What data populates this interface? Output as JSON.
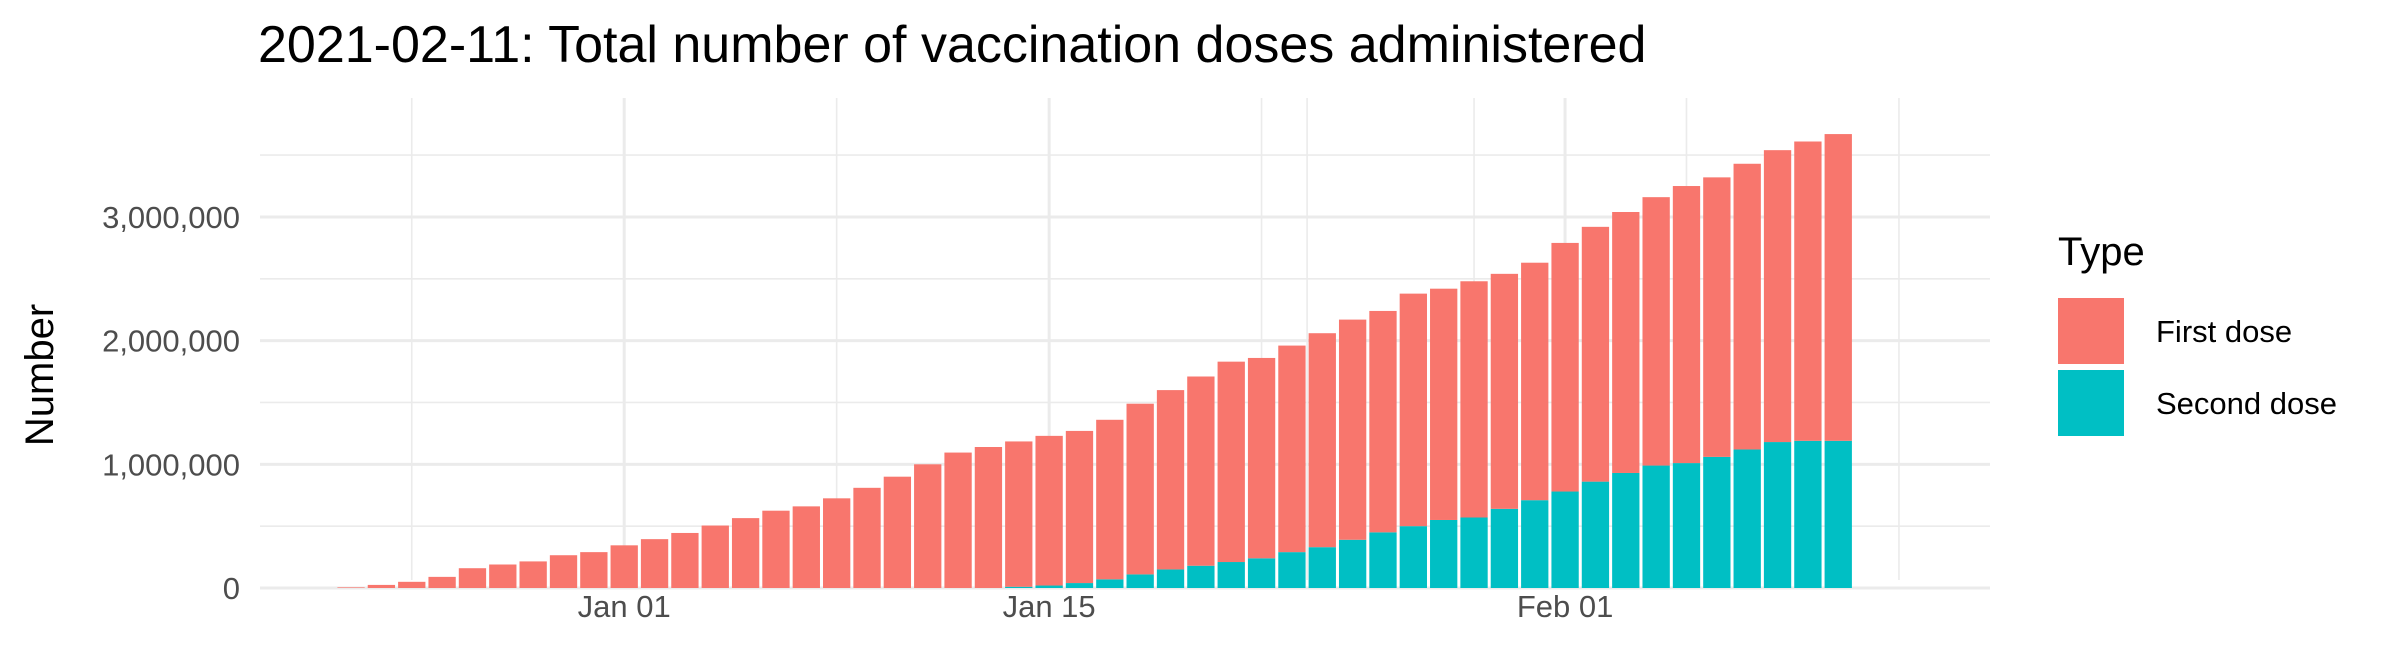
{
  "chart_data": {
    "type": "bar",
    "stacked": true,
    "title": "2021-02-11: Total number of vaccination doses administered",
    "ylabel": "Number",
    "xlabel": "",
    "ylim": [
      0,
      3800000
    ],
    "xlim": [
      "2020-12-20",
      "2021-02-15"
    ],
    "yticks": [
      0,
      1000000,
      2000000,
      3000000
    ],
    "ytick_labels": [
      "0",
      "1,000,000",
      "2,000,000",
      "3,000,000"
    ],
    "xticks": [
      "2021-01-01",
      "2021-01-15",
      "2021-02-01"
    ],
    "xtick_labels": [
      "Jan 01",
      "Jan 15",
      "Feb 01"
    ],
    "grid": true,
    "legend": {
      "title": "Type",
      "position": "right"
    },
    "dates": [
      "2020-12-22",
      "2020-12-23",
      "2020-12-24",
      "2020-12-25",
      "2020-12-26",
      "2020-12-27",
      "2020-12-28",
      "2020-12-29",
      "2020-12-30",
      "2020-12-31",
      "2021-01-01",
      "2021-01-02",
      "2021-01-03",
      "2021-01-04",
      "2021-01-05",
      "2021-01-06",
      "2021-01-07",
      "2021-01-08",
      "2021-01-09",
      "2021-01-10",
      "2021-01-11",
      "2021-01-12",
      "2021-01-13",
      "2021-01-14",
      "2021-01-15",
      "2021-01-16",
      "2021-01-17",
      "2021-01-18",
      "2021-01-19",
      "2021-01-20",
      "2021-01-21",
      "2021-01-22",
      "2021-01-23",
      "2021-01-24",
      "2021-01-25",
      "2021-01-26",
      "2021-01-27",
      "2021-01-28",
      "2021-01-29",
      "2021-01-30",
      "2021-01-31",
      "2021-02-01",
      "2021-02-02",
      "2021-02-03",
      "2021-02-04",
      "2021-02-05",
      "2021-02-06",
      "2021-02-07",
      "2021-02-08",
      "2021-02-09",
      "2021-02-10"
    ],
    "series": [
      {
        "name": "First dose",
        "color": "#F8766D",
        "values": [
          0,
          5000,
          25000,
          50000,
          90000,
          160000,
          190000,
          215000,
          265000,
          290000,
          345000,
          395000,
          445000,
          505000,
          565000,
          625000,
          660000,
          725000,
          810000,
          900000,
          1000000,
          1095000,
          1140000,
          1175000,
          1210000,
          1230000,
          1290000,
          1380000,
          1450000,
          1530000,
          1620000,
          1620000,
          1670000,
          1730000,
          1780000,
          1790000,
          1880000,
          1870000,
          1910000,
          1900000,
          1920000,
          2010000,
          2060000,
          2110000,
          2170000,
          2240000,
          2260000,
          2310000,
          2360000,
          2420000,
          2480000
        ]
      },
      {
        "name": "Second dose",
        "color": "#00BFC4",
        "values": [
          0,
          0,
          0,
          0,
          0,
          0,
          0,
          0,
          0,
          0,
          0,
          0,
          0,
          0,
          0,
          0,
          0,
          0,
          0,
          0,
          0,
          0,
          0,
          10000,
          20000,
          40000,
          70000,
          110000,
          150000,
          180000,
          210000,
          240000,
          290000,
          330000,
          390000,
          450000,
          500000,
          550000,
          570000,
          640000,
          710000,
          780000,
          860000,
          930000,
          990000,
          1010000,
          1060000,
          1120000,
          1180000,
          1190000,
          1190000
        ]
      }
    ]
  }
}
